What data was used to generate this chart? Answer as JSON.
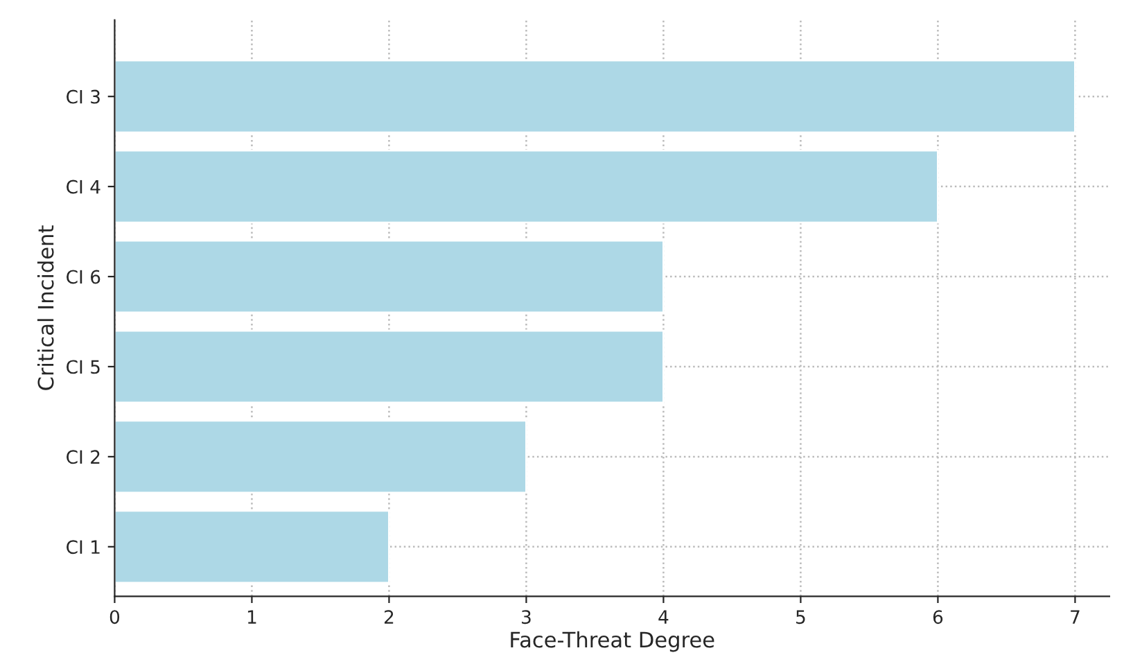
{
  "chart_data": {
    "type": "bar",
    "orientation": "horizontal",
    "xlabel": "Face-Threat Degree",
    "ylabel": "Critical Incident",
    "categories": [
      "CI 3",
      "CI 4",
      "CI 6",
      "CI 5",
      "CI 2",
      "CI 1"
    ],
    "values": [
      7,
      6,
      4,
      4,
      3,
      2
    ],
    "color": "#add8e6",
    "xlim": [
      0,
      7.25
    ],
    "xticks": [
      0,
      1,
      2,
      3,
      4,
      5,
      6,
      7
    ],
    "grid": true
  }
}
